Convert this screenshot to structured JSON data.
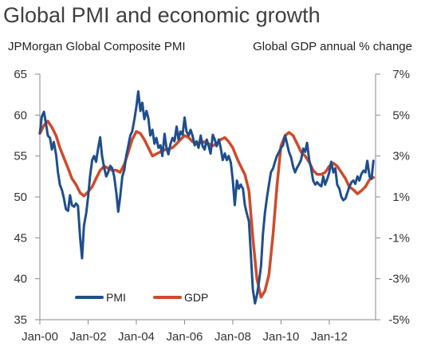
{
  "chart_data": {
    "type": "line",
    "title": "Global PMI and economic growth",
    "left_axis": {
      "label": "JPMorgan Global Composite PMI",
      "ylim": [
        35,
        65
      ],
      "ticks": [
        35,
        40,
        45,
        50,
        55,
        60,
        65
      ],
      "tick_labels": [
        "35",
        "40",
        "45",
        "50",
        "55",
        "60",
        "65"
      ]
    },
    "right_axis": {
      "label": "Global GDP annual % change",
      "ylim": [
        -5,
        7
      ],
      "ticks": [
        -5,
        -3,
        -1,
        1,
        3,
        5,
        7
      ],
      "tick_labels": [
        "-5%",
        "-3%",
        "-1%",
        "1%",
        "3%",
        "5%",
        "7%"
      ]
    },
    "x_axis": {
      "xlim": [
        2000.0,
        2013.92
      ],
      "ticks": [
        2000,
        2002,
        2004,
        2006,
        2008,
        2010,
        2012
      ],
      "tick_labels": [
        "Jan-00",
        "Jan-02",
        "Jan-04",
        "Jan-06",
        "Jan-08",
        "Jan-10",
        "Jan-12"
      ]
    },
    "legend": {
      "placement": "bottom-left"
    },
    "grid": false,
    "series": [
      {
        "name": "PMI",
        "axis": "left",
        "color": "#1f4e8c",
        "points": [
          [
            2000.0,
            57.8
          ],
          [
            2000.08,
            59.8
          ],
          [
            2000.17,
            60.4
          ],
          [
            2000.25,
            59.0
          ],
          [
            2000.33,
            57.5
          ],
          [
            2000.42,
            57.2
          ],
          [
            2000.5,
            55.8
          ],
          [
            2000.58,
            56.7
          ],
          [
            2000.67,
            55.2
          ],
          [
            2000.75,
            53.0
          ],
          [
            2000.83,
            51.5
          ],
          [
            2000.92,
            50.8
          ],
          [
            2001.0,
            49.8
          ],
          [
            2001.08,
            48.5
          ],
          [
            2001.17,
            48.3
          ],
          [
            2001.25,
            50.2
          ],
          [
            2001.33,
            49.0
          ],
          [
            2001.42,
            48.8
          ],
          [
            2001.5,
            49.2
          ],
          [
            2001.58,
            48.9
          ],
          [
            2001.67,
            45.0
          ],
          [
            2001.75,
            42.5
          ],
          [
            2001.83,
            46.5
          ],
          [
            2001.92,
            48.0
          ],
          [
            2002.0,
            50.0
          ],
          [
            2002.08,
            52.5
          ],
          [
            2002.17,
            54.5
          ],
          [
            2002.25,
            55.0
          ],
          [
            2002.33,
            54.3
          ],
          [
            2002.42,
            56.0
          ],
          [
            2002.5,
            57.3
          ],
          [
            2002.58,
            55.0
          ],
          [
            2002.67,
            53.5
          ],
          [
            2002.75,
            52.5
          ],
          [
            2002.83,
            53.0
          ],
          [
            2002.92,
            53.8
          ],
          [
            2003.0,
            53.5
          ],
          [
            2003.08,
            52.5
          ],
          [
            2003.17,
            50.5
          ],
          [
            2003.25,
            48.2
          ],
          [
            2003.33,
            50.0
          ],
          [
            2003.42,
            52.5
          ],
          [
            2003.5,
            53.3
          ],
          [
            2003.58,
            55.0
          ],
          [
            2003.67,
            56.3
          ],
          [
            2003.75,
            57.5
          ],
          [
            2003.83,
            58.0
          ],
          [
            2003.92,
            59.5
          ],
          [
            2004.0,
            61.0
          ],
          [
            2004.08,
            62.9
          ],
          [
            2004.17,
            60.5
          ],
          [
            2004.25,
            61.5
          ],
          [
            2004.33,
            59.5
          ],
          [
            2004.42,
            60.5
          ],
          [
            2004.5,
            59.6
          ],
          [
            2004.58,
            57.5
          ],
          [
            2004.67,
            58.2
          ],
          [
            2004.75,
            56.5
          ],
          [
            2004.83,
            57.2
          ],
          [
            2004.92,
            56.0
          ],
          [
            2005.0,
            56.3
          ],
          [
            2005.08,
            55.0
          ],
          [
            2005.17,
            57.7
          ],
          [
            2005.25,
            56.0
          ],
          [
            2005.33,
            55.2
          ],
          [
            2005.42,
            56.5
          ],
          [
            2005.5,
            57.2
          ],
          [
            2005.58,
            56.8
          ],
          [
            2005.67,
            58.6
          ],
          [
            2005.75,
            57.0
          ],
          [
            2005.83,
            58.0
          ],
          [
            2005.92,
            57.6
          ],
          [
            2006.0,
            59.7
          ],
          [
            2006.08,
            58.0
          ],
          [
            2006.17,
            57.5
          ],
          [
            2006.25,
            58.2
          ],
          [
            2006.33,
            57.5
          ],
          [
            2006.42,
            56.3
          ],
          [
            2006.5,
            56.8
          ],
          [
            2006.58,
            56.0
          ],
          [
            2006.67,
            57.5
          ],
          [
            2006.75,
            56.2
          ],
          [
            2006.83,
            55.8
          ],
          [
            2006.92,
            57.0
          ],
          [
            2007.0,
            56.2
          ],
          [
            2007.08,
            55.3
          ],
          [
            2007.17,
            57.6
          ],
          [
            2007.25,
            57.0
          ],
          [
            2007.33,
            56.2
          ],
          [
            2007.42,
            57.0
          ],
          [
            2007.5,
            56.0
          ],
          [
            2007.58,
            54.5
          ],
          [
            2007.67,
            55.3
          ],
          [
            2007.75,
            54.5
          ],
          [
            2007.83,
            55.0
          ],
          [
            2007.92,
            54.2
          ],
          [
            2008.0,
            52.0
          ],
          [
            2008.08,
            49.0
          ],
          [
            2008.17,
            52.0
          ],
          [
            2008.25,
            51.0
          ],
          [
            2008.33,
            51.5
          ],
          [
            2008.42,
            51.0
          ],
          [
            2008.5,
            49.0
          ],
          [
            2008.58,
            48.0
          ],
          [
            2008.67,
            47.0
          ],
          [
            2008.75,
            43.0
          ],
          [
            2008.83,
            38.7
          ],
          [
            2008.92,
            37.0
          ],
          [
            2009.0,
            38.0
          ],
          [
            2009.08,
            39.5
          ],
          [
            2009.17,
            41.5
          ],
          [
            2009.25,
            45.5
          ],
          [
            2009.33,
            48.0
          ],
          [
            2009.42,
            50.0
          ],
          [
            2009.5,
            51.5
          ],
          [
            2009.58,
            53.0
          ],
          [
            2009.67,
            53.5
          ],
          [
            2009.75,
            54.3
          ],
          [
            2009.83,
            55.0
          ],
          [
            2009.92,
            55.5
          ],
          [
            2010.0,
            56.0
          ],
          [
            2010.08,
            56.3
          ],
          [
            2010.17,
            57.5
          ],
          [
            2010.25,
            56.5
          ],
          [
            2010.33,
            55.5
          ],
          [
            2010.42,
            54.8
          ],
          [
            2010.5,
            53.7
          ],
          [
            2010.58,
            53.0
          ],
          [
            2010.67,
            53.6
          ],
          [
            2010.75,
            54.0
          ],
          [
            2010.83,
            54.5
          ],
          [
            2010.92,
            55.9
          ],
          [
            2011.0,
            55.5
          ],
          [
            2011.08,
            56.6
          ],
          [
            2011.17,
            54.5
          ],
          [
            2011.25,
            53.5
          ],
          [
            2011.33,
            52.0
          ],
          [
            2011.42,
            51.5
          ],
          [
            2011.5,
            51.8
          ],
          [
            2011.58,
            51.5
          ],
          [
            2011.67,
            51.3
          ],
          [
            2011.75,
            52.5
          ],
          [
            2011.83,
            51.5
          ],
          [
            2011.92,
            52.2
          ],
          [
            2012.0,
            53.0
          ],
          [
            2012.08,
            54.3
          ],
          [
            2012.17,
            53.0
          ],
          [
            2012.25,
            53.5
          ],
          [
            2012.33,
            51.5
          ],
          [
            2012.42,
            51.0
          ],
          [
            2012.5,
            50.0
          ],
          [
            2012.58,
            49.6
          ],
          [
            2012.67,
            49.8
          ],
          [
            2012.75,
            50.5
          ],
          [
            2012.83,
            51.2
          ],
          [
            2012.92,
            51.8
          ],
          [
            2013.0,
            52.0
          ],
          [
            2013.08,
            51.6
          ],
          [
            2013.17,
            52.5
          ],
          [
            2013.25,
            52.0
          ],
          [
            2013.33,
            52.8
          ],
          [
            2013.42,
            53.2
          ],
          [
            2013.5,
            53.0
          ],
          [
            2013.58,
            54.4
          ],
          [
            2013.67,
            52.5
          ],
          [
            2013.75,
            52.2
          ],
          [
            2013.83,
            54.4
          ]
        ]
      },
      {
        "name": "GDP",
        "axis": "right",
        "color": "#d04a2a",
        "points": [
          [
            2000.0,
            4.1
          ],
          [
            2000.17,
            4.5
          ],
          [
            2000.33,
            4.7
          ],
          [
            2000.5,
            4.4
          ],
          [
            2000.67,
            4.0
          ],
          [
            2000.83,
            3.4
          ],
          [
            2001.0,
            2.9
          ],
          [
            2001.17,
            2.4
          ],
          [
            2001.33,
            1.9
          ],
          [
            2001.5,
            1.6
          ],
          [
            2001.67,
            1.2
          ],
          [
            2001.83,
            1.05
          ],
          [
            2002.0,
            1.25
          ],
          [
            2002.17,
            1.5
          ],
          [
            2002.33,
            1.9
          ],
          [
            2002.5,
            2.3
          ],
          [
            2002.67,
            2.5
          ],
          [
            2002.83,
            2.4
          ],
          [
            2003.0,
            2.3
          ],
          [
            2003.17,
            2.3
          ],
          [
            2003.33,
            2.2
          ],
          [
            2003.5,
            2.6
          ],
          [
            2003.67,
            3.2
          ],
          [
            2003.83,
            3.8
          ],
          [
            2004.0,
            4.2
          ],
          [
            2004.17,
            4.1
          ],
          [
            2004.33,
            3.8
          ],
          [
            2004.5,
            3.4
          ],
          [
            2004.67,
            3.0
          ],
          [
            2004.83,
            3.1
          ],
          [
            2005.0,
            3.2
          ],
          [
            2005.17,
            3.3
          ],
          [
            2005.33,
            3.35
          ],
          [
            2005.5,
            3.4
          ],
          [
            2005.67,
            3.6
          ],
          [
            2005.83,
            3.8
          ],
          [
            2006.0,
            4.0
          ],
          [
            2006.17,
            3.9
          ],
          [
            2006.33,
            3.7
          ],
          [
            2006.5,
            3.6
          ],
          [
            2006.67,
            3.65
          ],
          [
            2006.83,
            3.7
          ],
          [
            2007.0,
            3.6
          ],
          [
            2007.17,
            3.5
          ],
          [
            2007.33,
            3.6
          ],
          [
            2007.5,
            3.8
          ],
          [
            2007.67,
            3.9
          ],
          [
            2007.83,
            3.7
          ],
          [
            2008.0,
            3.4
          ],
          [
            2008.17,
            2.9
          ],
          [
            2008.33,
            2.5
          ],
          [
            2008.5,
            2.1
          ],
          [
            2008.67,
            1.3
          ],
          [
            2008.83,
            -1.0
          ],
          [
            2009.0,
            -3.0
          ],
          [
            2009.17,
            -3.9
          ],
          [
            2009.33,
            -3.6
          ],
          [
            2009.5,
            -2.8
          ],
          [
            2009.67,
            -0.8
          ],
          [
            2009.83,
            1.5
          ],
          [
            2010.0,
            3.5
          ],
          [
            2010.17,
            4.0
          ],
          [
            2010.33,
            4.15
          ],
          [
            2010.5,
            4.0
          ],
          [
            2010.67,
            3.6
          ],
          [
            2010.83,
            3.2
          ],
          [
            2011.0,
            3.0
          ],
          [
            2011.17,
            2.7
          ],
          [
            2011.33,
            2.3
          ],
          [
            2011.5,
            2.1
          ],
          [
            2011.67,
            2.1
          ],
          [
            2011.83,
            2.2
          ],
          [
            2012.0,
            2.5
          ],
          [
            2012.17,
            2.65
          ],
          [
            2012.33,
            2.5
          ],
          [
            2012.5,
            2.2
          ],
          [
            2012.67,
            1.9
          ],
          [
            2012.83,
            1.5
          ],
          [
            2013.0,
            1.35
          ],
          [
            2013.17,
            1.15
          ],
          [
            2013.33,
            1.3
          ],
          [
            2013.5,
            1.5
          ],
          [
            2013.67,
            1.85
          ],
          [
            2013.83,
            1.95
          ]
        ]
      }
    ]
  }
}
